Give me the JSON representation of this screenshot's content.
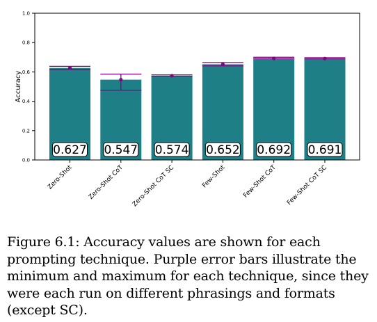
{
  "chart_data": {
    "type": "bar",
    "title": "",
    "xlabel": "",
    "ylabel": "Accuracy",
    "ylim": [
      0,
      1.0
    ],
    "yticks": [
      "0.0",
      "0.2",
      "0.4",
      "0.6",
      "0.8",
      "1.0"
    ],
    "grid": false,
    "bar_color": "#1f7f86",
    "error_color": "#7b0a7d",
    "categories": [
      "Zero-Shot",
      "Zero-Shot CoT",
      "Zero-Shot CoT SC",
      "Few-Shot",
      "Few-Shot CoT",
      "Few-Shot CoT SC"
    ],
    "values": [
      0.627,
      0.547,
      0.574,
      0.652,
      0.692,
      0.691
    ],
    "value_labels": [
      "0.627",
      "0.547",
      "0.574",
      "0.652",
      "0.692",
      "0.691"
    ],
    "err_min": [
      0.617,
      0.475,
      0.571,
      0.641,
      0.69,
      0.689
    ],
    "err_max": [
      0.638,
      0.585,
      0.58,
      0.664,
      0.7,
      0.697
    ]
  },
  "caption": "Figure 6.1: Accuracy values are shown for each prompting technique. Purple error bars illustrate the minimum and maximum for each technique, since they were each run on different phrasings and formats (except SC)."
}
